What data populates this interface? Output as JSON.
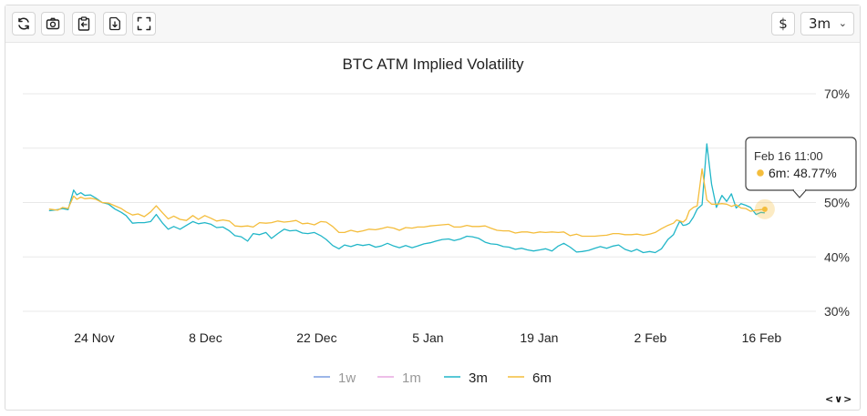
{
  "toolbar": {
    "icons": [
      "refresh-icon",
      "camera-icon",
      "clipboard-icon",
      "download-icon",
      "fullscreen-icon"
    ],
    "currency_label": "$",
    "range_label": "3m",
    "range_chevron": "⌄"
  },
  "nav": {
    "arrows": "<∨>"
  },
  "colors": {
    "1w": "#7b9ee0",
    "1m": "#e8a8e0",
    "3m": "#21b6c8",
    "6m": "#f4bd3c",
    "grid": "#e8e8e8"
  },
  "tooltip": {
    "date": "Feb 16 11:00",
    "series": "6m",
    "text": "6m: 48.77%"
  },
  "chart_data": {
    "type": "line",
    "title": "BTC ATM Implied Volatility",
    "xlabel": "",
    "ylabel": "",
    "ylim": [
      30,
      70
    ],
    "yticks": [
      "30%",
      "40%",
      "50%",
      "60%",
      "70%"
    ],
    "xlim": [
      -9,
      89
    ],
    "xticks": [
      {
        "label": "24 Nov",
        "day": 0
      },
      {
        "label": "8 Dec",
        "day": 14
      },
      {
        "label": "22 Dec",
        "day": 28
      },
      {
        "label": "5 Jan",
        "day": 42
      },
      {
        "label": "19 Jan",
        "day": 56
      },
      {
        "label": "2 Feb",
        "day": 70
      },
      {
        "label": "16 Feb",
        "day": 84
      }
    ],
    "legend": [
      {
        "name": "1w",
        "visible": false
      },
      {
        "name": "1m",
        "visible": false
      },
      {
        "name": "3m",
        "visible": true
      },
      {
        "name": "6m",
        "visible": true
      }
    ],
    "series": [
      {
        "name": "3m",
        "day": [
          -5.7,
          -4.6,
          -4,
          -3.3,
          -2.6,
          -2.2,
          -1.7,
          -1.2,
          -0.5,
          0.2,
          1,
          1.8,
          2.6,
          3.4,
          4,
          4.8,
          5.5,
          6.3,
          7.1,
          7.8,
          8.6,
          9.3,
          10,
          10.8,
          11.6,
          12.4,
          13.1,
          13.9,
          14.7,
          15.4,
          16.2,
          17,
          17.7,
          18.5,
          19.3,
          20,
          20.8,
          21.6,
          22.3,
          23.1,
          23.9,
          24.6,
          25.4,
          26.2,
          26.9,
          27.7,
          28.5,
          29.2,
          30,
          30.8,
          31.5,
          32.3,
          33.1,
          33.8,
          34.6,
          35.4,
          36.1,
          36.9,
          37.7,
          38.4,
          39.2,
          40,
          40.7,
          41.5,
          42.3,
          43,
          43.8,
          44.6,
          45.3,
          46.1,
          46.9,
          47.6,
          48.4,
          49.2,
          49.9,
          50.7,
          51.5,
          52.2,
          53,
          53.8,
          54.5,
          55.3,
          56.1,
          56.8,
          57.6,
          58.4,
          59.1,
          59.9,
          60.7,
          61.4,
          62.2,
          63,
          63.7,
          64.5,
          65.3,
          66,
          66.8,
          67.6,
          68.3,
          69.1,
          69.9,
          70.6,
          71.4,
          72.2,
          72.9,
          73.3,
          73.7,
          74.1,
          74.5,
          74.9,
          75.4,
          75.9,
          76.5,
          77.1,
          77.7,
          78.3,
          79,
          79.6,
          80.2,
          80.8,
          81.4,
          82,
          82.6,
          83.3,
          83.9,
          84.4
        ],
        "values": [
          48.5,
          48.7,
          48.9,
          48.7,
          52.3,
          51.4,
          51.8,
          51.3,
          51.4,
          50.8,
          50,
          49.7,
          48.8,
          48.2,
          47.6,
          46.2,
          46.3,
          46.3,
          46.5,
          47.8,
          46.2,
          45.1,
          45.6,
          45.1,
          45.8,
          46.5,
          46.1,
          46.3,
          46,
          45.4,
          45.5,
          44.8,
          43.9,
          43.7,
          42.9,
          44.3,
          44.1,
          44.5,
          43.4,
          44.3,
          45.1,
          44.8,
          44.9,
          44.4,
          44.3,
          44.5,
          43.9,
          43.2,
          42.1,
          41.5,
          42.2,
          41.9,
          42.3,
          42.1,
          42.3,
          41.8,
          42,
          42.5,
          42,
          41.7,
          42.1,
          41.7,
          42,
          42.4,
          42.6,
          42.9,
          43.2,
          43.3,
          43,
          43.3,
          43.8,
          43.7,
          43.4,
          42.7,
          42.4,
          42.3,
          41.9,
          41.8,
          41.4,
          41.6,
          41.3,
          41.1,
          41.3,
          41.5,
          41.1,
          42,
          42.5,
          41.8,
          40.9,
          41,
          41.2,
          41.6,
          41.9,
          41.6,
          42,
          42.2,
          41.4,
          41,
          41.4,
          40.8,
          41,
          40.8,
          41.5,
          43.2,
          44.1,
          45.4,
          46.6,
          45.8,
          45.9,
          46.2,
          47.3,
          48.8,
          49.6,
          60.8,
          53.4,
          49.1,
          51.3,
          50.2,
          51.6,
          49,
          49.8,
          49.5,
          49.1,
          47.8,
          48.2,
          48.1,
          48.1
        ]
      },
      {
        "name": "6m",
        "day": [
          -5.7,
          -4.6,
          -4,
          -3.3,
          -2.6,
          -2.2,
          -1.7,
          -1.2,
          -0.5,
          0.2,
          1,
          1.8,
          2.6,
          3.4,
          4,
          4.8,
          5.5,
          6.3,
          7.1,
          7.8,
          8.6,
          9.3,
          10,
          10.8,
          11.6,
          12.4,
          13.1,
          13.9,
          14.7,
          15.4,
          16.2,
          17,
          17.7,
          18.5,
          19.3,
          20,
          20.8,
          21.6,
          22.3,
          23.1,
          23.9,
          24.6,
          25.4,
          26.2,
          26.9,
          27.7,
          28.5,
          29.2,
          30,
          30.8,
          31.5,
          32.3,
          33.1,
          33.8,
          34.6,
          35.4,
          36.1,
          36.9,
          37.7,
          38.4,
          39.2,
          40,
          40.7,
          41.5,
          42.3,
          43,
          43.8,
          44.6,
          45.3,
          46.1,
          46.9,
          47.6,
          48.4,
          49.2,
          49.9,
          50.7,
          51.5,
          52.2,
          53,
          53.8,
          54.5,
          55.3,
          56.1,
          56.8,
          57.6,
          58.4,
          59.1,
          59.9,
          60.7,
          61.4,
          62.2,
          63,
          63.7,
          64.5,
          65.3,
          66,
          66.8,
          67.6,
          68.3,
          69.1,
          69.9,
          70.6,
          71.4,
          72.2,
          72.9,
          73.3,
          73.7,
          74.1,
          74.5,
          74.9,
          75.4,
          75.9,
          76.5,
          77.1,
          77.7,
          78.3,
          79,
          79.6,
          80.2,
          80.8,
          81.4,
          82,
          82.6,
          83.3,
          83.9,
          84.4
        ],
        "values": [
          48.8,
          48.6,
          49.1,
          48.9,
          51.2,
          50.6,
          51,
          50.7,
          50.8,
          50.6,
          50,
          49.9,
          49.4,
          48.9,
          48.3,
          47.7,
          47.9,
          47.4,
          48.3,
          49.4,
          48.1,
          47,
          47.5,
          46.9,
          46.7,
          47.6,
          46.9,
          47.6,
          47.1,
          46.6,
          46.8,
          46.6,
          45.7,
          45.6,
          45.7,
          45.5,
          46.3,
          46.2,
          46.3,
          46.6,
          46.4,
          46.5,
          46.7,
          46.1,
          46.2,
          45.9,
          46.5,
          46.4,
          45.6,
          44.5,
          44.5,
          44.9,
          44.6,
          44.8,
          45.1,
          45,
          45.2,
          45.5,
          45.3,
          44.9,
          45.4,
          45.3,
          45.5,
          45.5,
          45.7,
          45.8,
          45.9,
          46,
          45.5,
          45.5,
          45.8,
          45.6,
          45.6,
          45.7,
          45.3,
          44.9,
          44.8,
          44.8,
          44.4,
          44.6,
          44.6,
          44.4,
          44.6,
          44.5,
          44.6,
          44.5,
          44.6,
          43.9,
          44.2,
          43.8,
          43.8,
          43.8,
          43.9,
          44,
          44.3,
          44.3,
          44.1,
          44.1,
          44.2,
          44,
          44.2,
          44.5,
          45.2,
          45.8,
          46.2,
          46.8,
          46.6,
          46.4,
          46.9,
          48.5,
          49.1,
          49.4,
          56.2,
          50.5,
          49.7,
          49.7,
          49.8,
          49.7,
          49.3,
          49.6,
          49,
          48.9,
          48.4,
          48.6,
          48.7,
          48.77
        ]
      }
    ]
  }
}
